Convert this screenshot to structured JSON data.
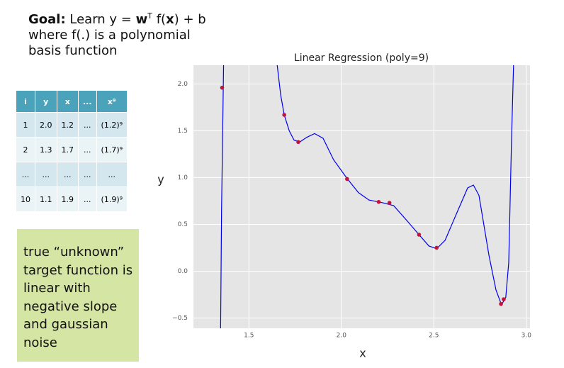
{
  "goal": {
    "label": "Goal:",
    "parts": [
      "Learn y = ",
      "w",
      "T",
      " f(",
      "x",
      ") + b"
    ],
    "lines": [
      "where f(.) is a polynomial",
      "basis function"
    ]
  },
  "table": {
    "header": [
      "i",
      "y",
      "x",
      "...",
      "x⁹"
    ],
    "rows": [
      [
        "1",
        "2.0",
        "1.2",
        "...",
        "(1.2)⁹"
      ],
      [
        "2",
        "1.3",
        "1.7",
        "...",
        "(1.7)⁹"
      ],
      [
        "...",
        "...",
        "...",
        "...",
        "..."
      ],
      [
        "10",
        "1.1",
        "1.9",
        "...",
        "(1.9)⁹"
      ]
    ]
  },
  "note": {
    "lines": [
      "true “unknown”",
      "target function is",
      "linear with",
      "negative slope",
      "and gaussian",
      "noise"
    ]
  },
  "chart_data": {
    "type": "scatter",
    "title": "Linear Regression (poly=9)",
    "xlabel": "x",
    "ylabel": "y",
    "xlim": [
      1.2,
      3.02
    ],
    "ylim": [
      -0.61,
      2.2
    ],
    "grid": true,
    "xticks": [
      {
        "value": 1.5,
        "label": "1.5"
      },
      {
        "value": 2,
        "label": "2.0"
      },
      {
        "value": 2.5,
        "label": "2.5"
      },
      {
        "value": 3,
        "label": "3.0"
      }
    ],
    "yticks": [
      {
        "value": -0.5,
        "label": "−0.5"
      },
      {
        "value": 0,
        "label": "0.0"
      },
      {
        "value": 0.5,
        "label": "0.5"
      },
      {
        "value": 1,
        "label": "1.0"
      },
      {
        "value": 1.5,
        "label": "1.5"
      },
      {
        "value": 2,
        "label": "2.0"
      }
    ],
    "series": [
      {
        "type": "line",
        "color": "#0000ee",
        "x": [
          1.347,
          1.352,
          1.363,
          1.5,
          1.653,
          1.672,
          1.691,
          1.718,
          1.744,
          1.775,
          1.813,
          1.855,
          1.901,
          1.958,
          2.031,
          2.092,
          2.149,
          2.225,
          2.283,
          2.359,
          2.42,
          2.473,
          2.515,
          2.561,
          2.626,
          2.683,
          2.714,
          2.744,
          2.798,
          2.836,
          2.866,
          2.889,
          2.905,
          2.92,
          2.931
        ],
        "values": [
          -0.61,
          0.63,
          2.2,
          null,
          2.2,
          1.88,
          1.67,
          1.5,
          1.4,
          1.38,
          1.43,
          1.47,
          1.42,
          1.19,
          0.99,
          0.84,
          0.76,
          0.73,
          0.7,
          0.53,
          0.39,
          0.27,
          0.24,
          0.33,
          0.63,
          0.89,
          0.92,
          0.81,
          0.17,
          -0.2,
          -0.36,
          -0.28,
          0.09,
          1.39,
          2.2
        ]
      },
      {
        "type": "scatter",
        "color": "#c0143c",
        "x": [
          1.355,
          1.691,
          1.767,
          2.031,
          2.202,
          2.26,
          2.42,
          2.515,
          2.863,
          2.878
        ],
        "values": [
          1.96,
          1.67,
          1.38,
          0.985,
          0.74,
          0.73,
          0.39,
          0.25,
          -0.35,
          -0.3
        ]
      }
    ]
  }
}
